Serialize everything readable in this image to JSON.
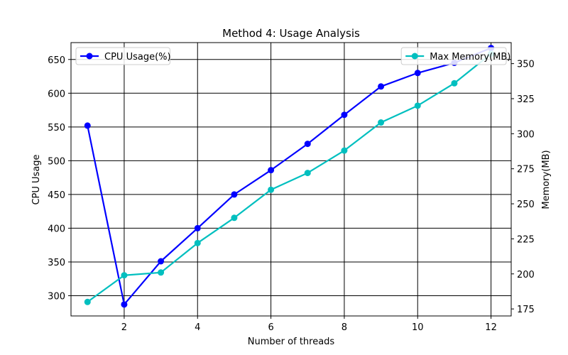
{
  "chart_data": {
    "type": "line",
    "title": "Method 4: Usage Analysis",
    "xlabel": "Number of threads",
    "ylabel_left": "CPU Usage",
    "ylabel_right": "Memory(MB)",
    "x": [
      1,
      2,
      3,
      4,
      5,
      6,
      7,
      8,
      9,
      10,
      11,
      12
    ],
    "xlim": [
      0.55,
      12.55
    ],
    "x_ticks": [
      2,
      4,
      6,
      8,
      10,
      12
    ],
    "y_left_lim": [
      270,
      675
    ],
    "y_left_ticks": [
      300,
      350,
      400,
      450,
      500,
      550,
      600,
      650
    ],
    "y_right_lim": [
      170,
      365
    ],
    "y_right_ticks": [
      175,
      200,
      225,
      250,
      275,
      300,
      325,
      350
    ],
    "grid": true,
    "series": [
      {
        "name": "CPU Usage(%)",
        "axis": "left",
        "color": "#0000ff",
        "values": [
          552,
          287,
          351,
          400,
          450,
          486,
          525,
          568,
          610,
          630,
          645,
          667
        ]
      },
      {
        "name": "Max Memory(MB)",
        "axis": "right",
        "color": "#00bfbf",
        "values": [
          180,
          199,
          201,
          222,
          240,
          260,
          272,
          288,
          308,
          320,
          336,
          357
        ]
      }
    ],
    "legends": [
      {
        "series": 0,
        "placement": "upper-left"
      },
      {
        "series": 1,
        "placement": "upper-right"
      }
    ]
  }
}
